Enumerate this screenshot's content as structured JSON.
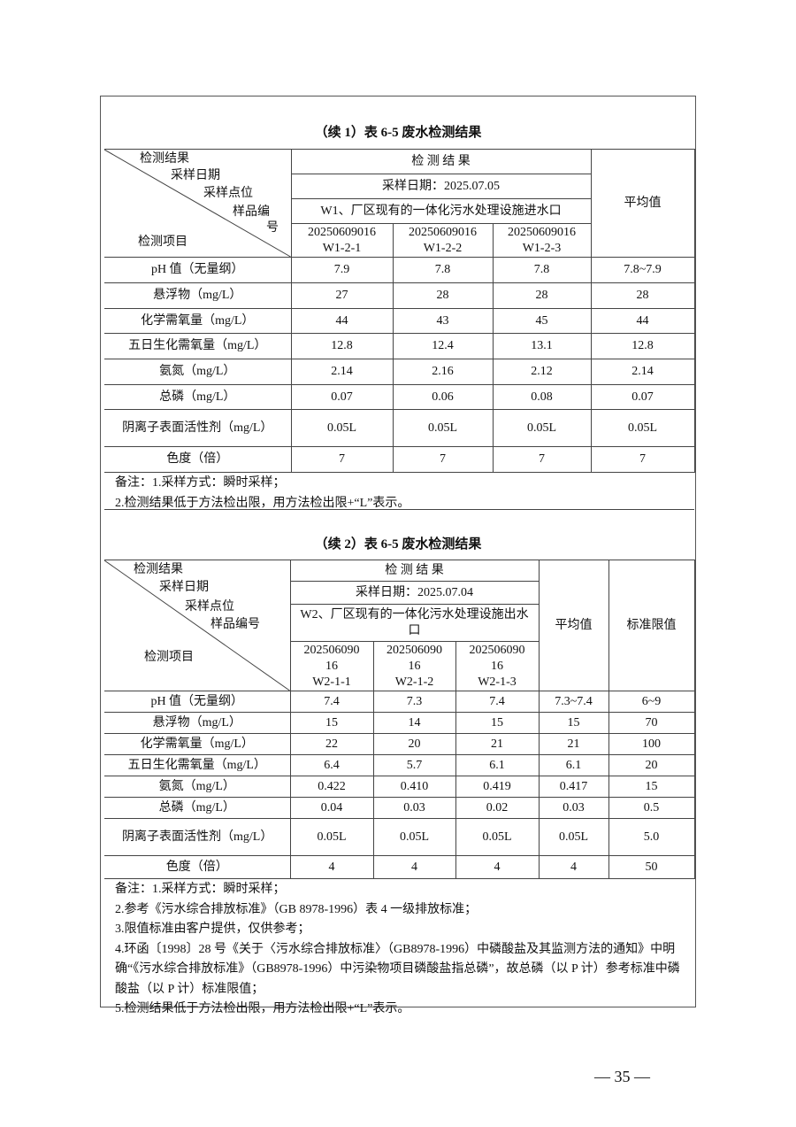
{
  "table1": {
    "title": "（续 1）表 6-5  废水检测结果",
    "diag": [
      "检测结果",
      "采样日期",
      "采样点位",
      "样品编",
      "号",
      "检测项目"
    ],
    "result_header": "检 测 结 果",
    "date": "采样日期：2025.07.05",
    "site": "W1、厂区现有的一体化污水处理设施进水口",
    "avg_header": "平均值",
    "samples": [
      [
        "20250609016",
        "W1-2-1"
      ],
      [
        "20250609016",
        "W1-2-2"
      ],
      [
        "20250609016",
        "W1-2-3"
      ]
    ],
    "rows": [
      [
        "pH 值（无量纲）",
        "7.9",
        "7.8",
        "7.8",
        "7.8~7.9"
      ],
      [
        "悬浮物（mg/L）",
        "27",
        "28",
        "28",
        "28"
      ],
      [
        "化学需氧量（mg/L）",
        "44",
        "43",
        "45",
        "44"
      ],
      [
        "五日生化需氧量（mg/L）",
        "12.8",
        "12.4",
        "13.1",
        "12.8"
      ],
      [
        "氨氮（mg/L）",
        "2.14",
        "2.16",
        "2.12",
        "2.14"
      ],
      [
        "总磷（mg/L）",
        "0.07",
        "0.06",
        "0.08",
        "0.07"
      ],
      [
        "阴离子表面活性剂（mg/L）",
        "0.05L",
        "0.05L",
        "0.05L",
        "0.05L"
      ],
      [
        "色度（倍）",
        "7",
        "7",
        "7",
        "7"
      ]
    ],
    "notes": [
      "备注：1.采样方式：瞬时采样；",
      "2.检测结果低于方法检出限，用方法检出限+“L”表示。"
    ]
  },
  "table2": {
    "title": "（续 2）表 6-5  废水检测结果",
    "diag": [
      "检测结果",
      "采样日期",
      "采样点位",
      "样品编号",
      "检测项目"
    ],
    "result_header": "检 测 结 果",
    "date": "采样日期：2025.07.04",
    "site": "W2、厂区现有的一体化污水处理设施出水口",
    "avg_header": "平均值",
    "limit_header": "标准限值",
    "samples": [
      [
        "202506090",
        "16",
        "W2-1-1"
      ],
      [
        "202506090",
        "16",
        "W2-1-2"
      ],
      [
        "202506090",
        "16",
        "W2-1-3"
      ]
    ],
    "rows": [
      [
        "pH 值（无量纲）",
        "7.4",
        "7.3",
        "7.4",
        "7.3~7.4",
        "6~9"
      ],
      [
        "悬浮物（mg/L）",
        "15",
        "14",
        "15",
        "15",
        "70"
      ],
      [
        "化学需氧量（mg/L）",
        "22",
        "20",
        "21",
        "21",
        "100"
      ],
      [
        "五日生化需氧量（mg/L）",
        "6.4",
        "5.7",
        "6.1",
        "6.1",
        "20"
      ],
      [
        "氨氮（mg/L）",
        "0.422",
        "0.410",
        "0.419",
        "0.417",
        "15"
      ],
      [
        "总磷（mg/L）",
        "0.04",
        "0.03",
        "0.02",
        "0.03",
        "0.5"
      ],
      [
        "阴离子表面活性剂（mg/L）",
        "0.05L",
        "0.05L",
        "0.05L",
        "0.05L",
        "5.0"
      ],
      [
        "色度（倍）",
        "4",
        "4",
        "4",
        "4",
        "50"
      ]
    ],
    "notes": [
      "备注：1.采样方式：瞬时采样；",
      "2.参考《污水综合排放标准》（GB 8978-1996）表 4 一级排放标准；",
      "3.限值标准由客户提供，仅供参考；",
      "4.环函〔1998〕28 号《关于〈污水综合排放标准〉（GB8978-1996）中磷酸盐及其监测方法的通知》中明确“《污水综合排放标准》（GB8978-1996）中污染物项目磷酸盐指总磷”，故总磷（以 P 计）参考标准中磷酸盐（以 P 计）标准限值；",
      "5.检测结果低于方法检出限，用方法检出限+“L”表示。"
    ]
  },
  "page_number": "—  35  —"
}
